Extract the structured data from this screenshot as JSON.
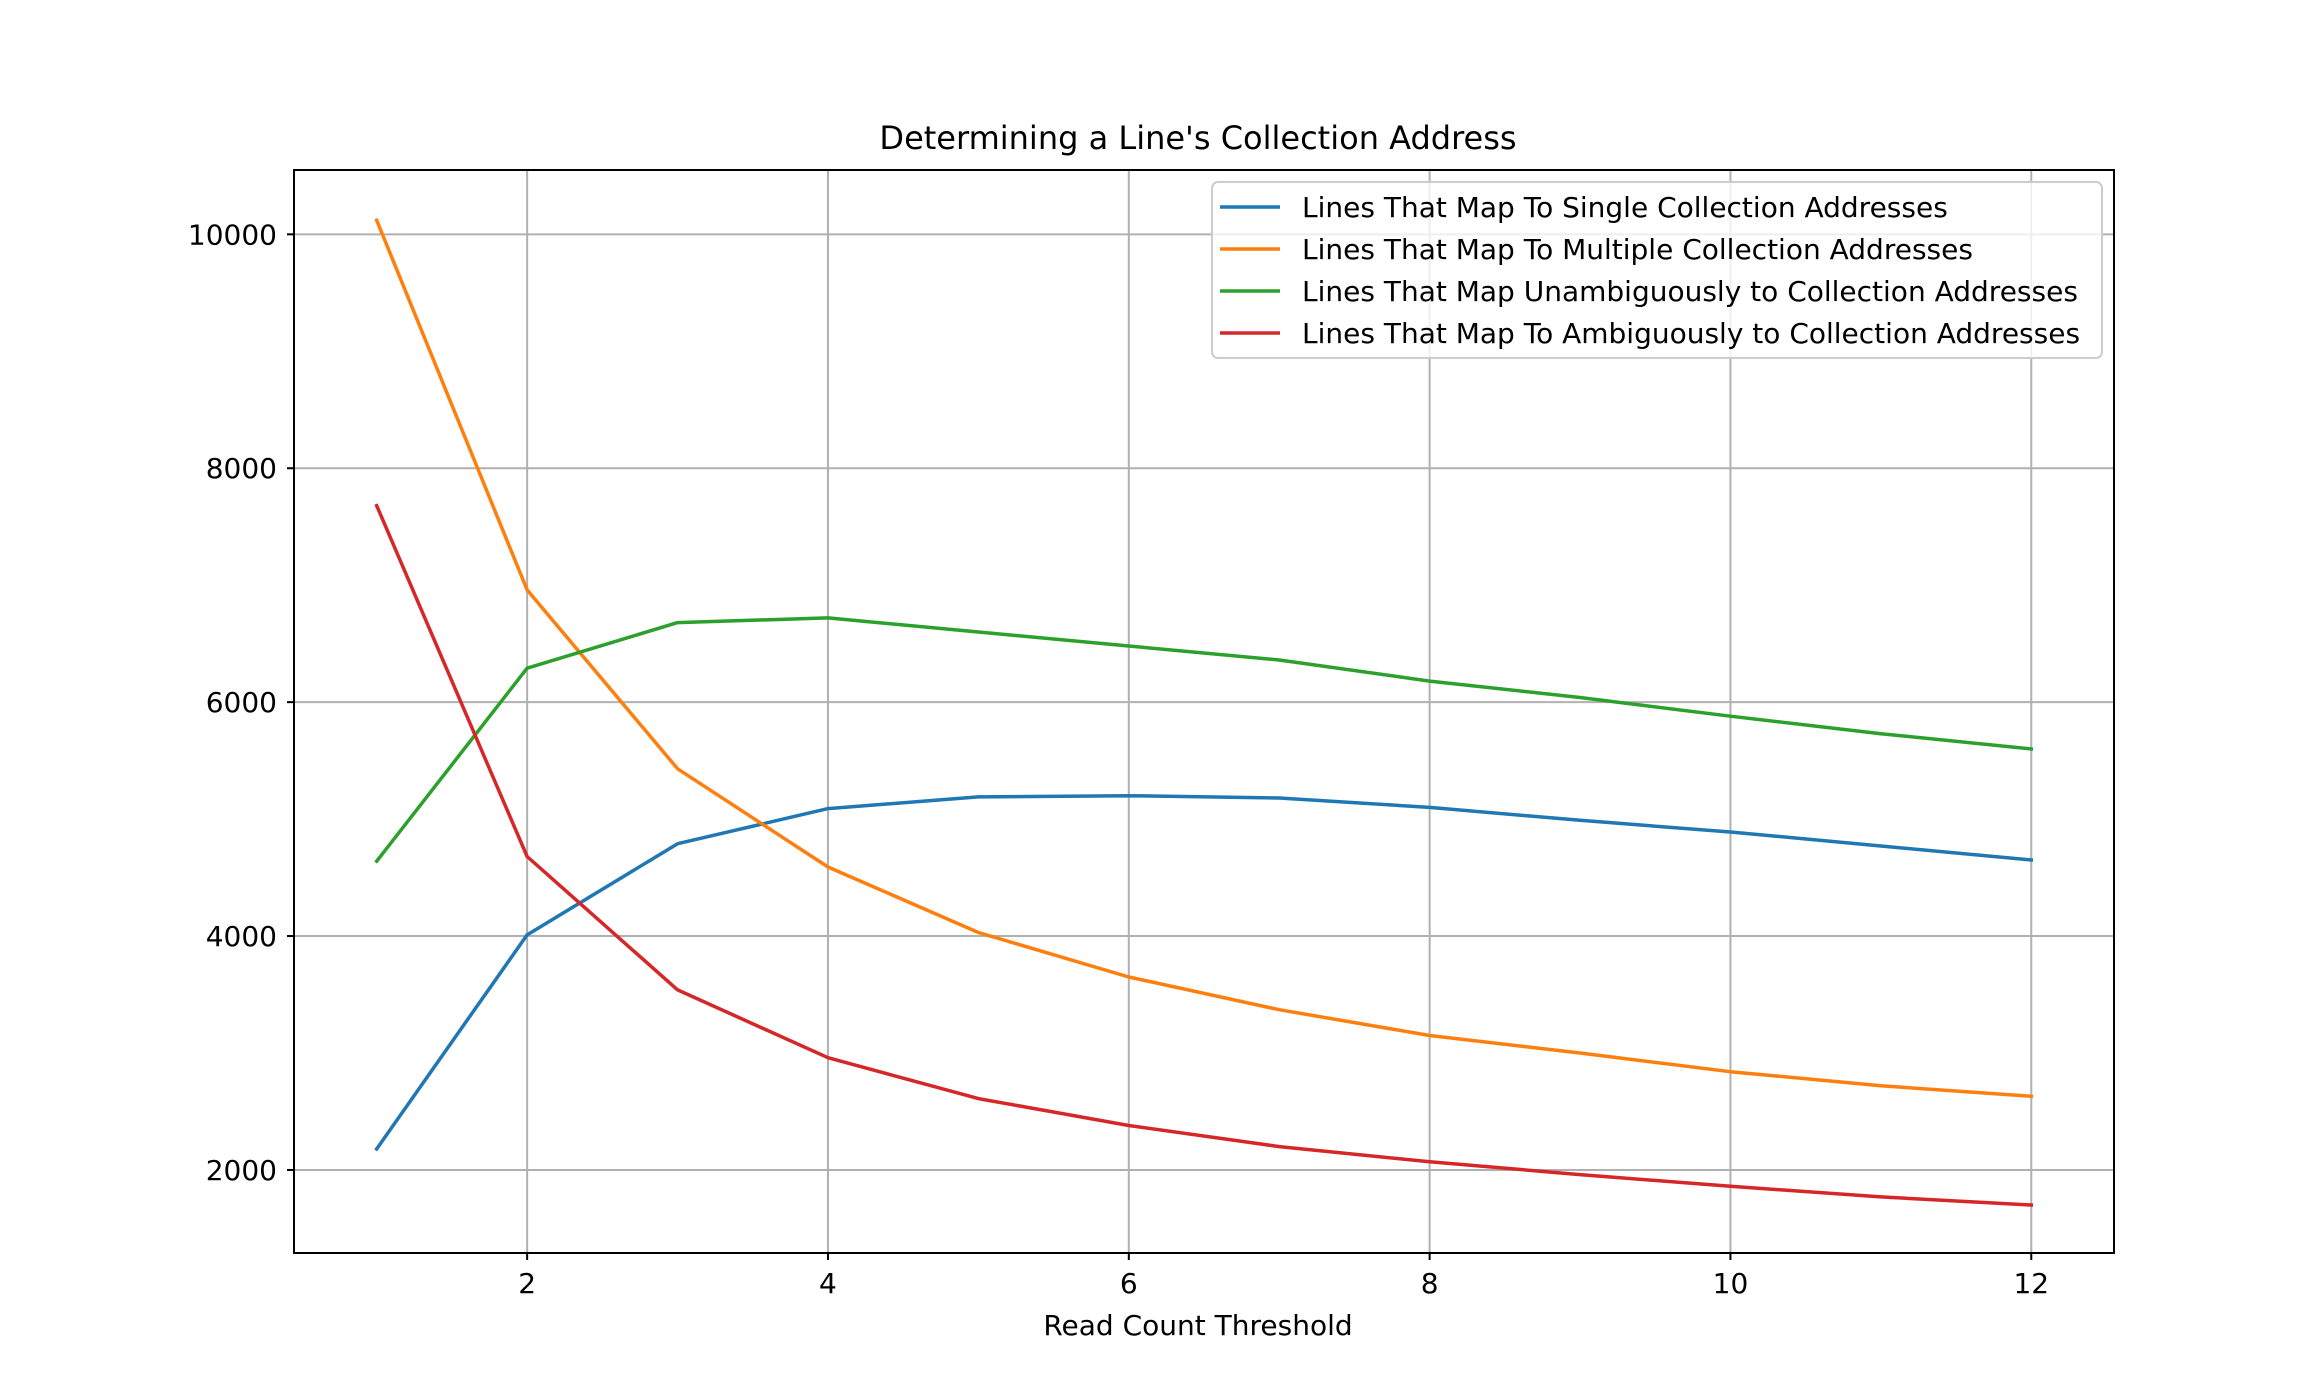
{
  "chart_data": {
    "type": "line",
    "title": "Determining a Line's Collection Address",
    "xlabel": "Read Count Threshold",
    "ylabel": "",
    "x": [
      1,
      2,
      3,
      4,
      5,
      6,
      7,
      8,
      9,
      10,
      11,
      12
    ],
    "xlim": [
      0.45,
      12.55
    ],
    "ylim": [
      1290,
      10550
    ],
    "xticks": [
      2,
      4,
      6,
      8,
      10,
      12
    ],
    "yticks": [
      2000,
      4000,
      6000,
      8000,
      10000
    ],
    "grid": true,
    "legend_position": "upper right",
    "series": [
      {
        "name": "Lines That Map To Single Collection Addresses",
        "color": "#1f77b4",
        "values": [
          2180,
          4010,
          4790,
          5090,
          5190,
          5200,
          5180,
          5100,
          4990,
          4890,
          4770,
          4650
        ]
      },
      {
        "name": "Lines That Map To Multiple Collection Addresses",
        "color": "#ff7f0e",
        "values": [
          10120,
          6960,
          5430,
          4590,
          4030,
          3650,
          3370,
          3150,
          3000,
          2840,
          2720,
          2630
        ]
      },
      {
        "name": "Lines That Map Unambiguously to Collection Addresses",
        "color": "#2ca02c",
        "values": [
          4640,
          6290,
          6680,
          6720,
          6600,
          6480,
          6360,
          6180,
          6040,
          5880,
          5730,
          5600
        ]
      },
      {
        "name": "Lines That Map To Ambiguously to Collection Addresses",
        "color": "#d62728",
        "values": [
          7680,
          4680,
          3540,
          2960,
          2610,
          2380,
          2200,
          2070,
          1960,
          1860,
          1770,
          1700
        ]
      }
    ]
  }
}
